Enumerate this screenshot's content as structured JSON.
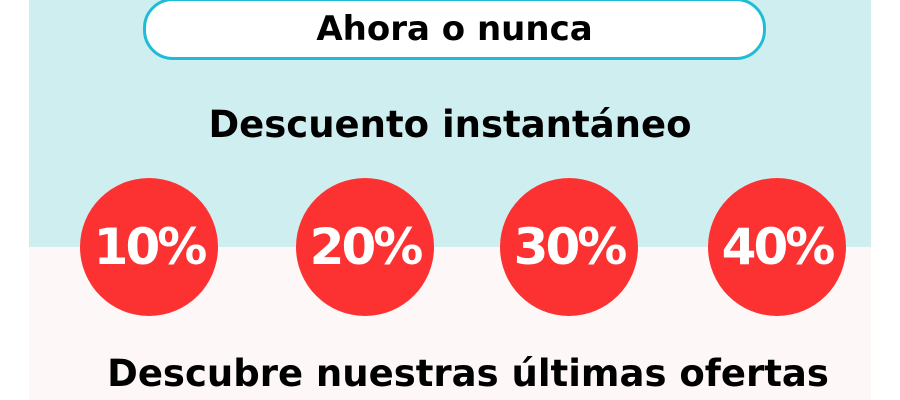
{
  "banner": {
    "headline": "Ahora o nunca",
    "subtitle": "Descuento instantáneo",
    "discounts": [
      "10%",
      "20%",
      "30%",
      "40%"
    ],
    "footer": "Descubre nuestras últimas ofertas"
  },
  "colors": {
    "top_bg": "#cfeef0",
    "bottom_bg": "#fdf7f7",
    "accent_border": "#1fbcd8",
    "badge_red": "#fc3232"
  }
}
